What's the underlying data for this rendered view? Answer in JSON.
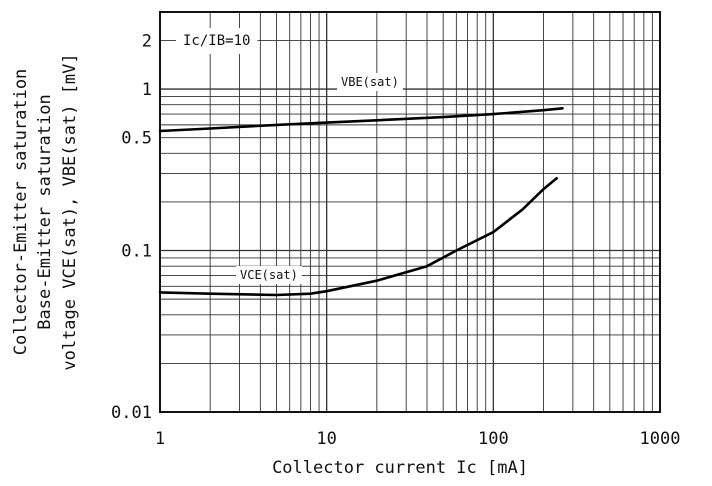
{
  "chart_data": {
    "type": "line",
    "x_scale": "log",
    "y_scale": "log",
    "xlim": [
      1,
      1000
    ],
    "ylim": [
      0.01,
      3
    ],
    "grid": true,
    "xlabel": "Collector current Ic [mA]",
    "ylabel_lines": [
      "Collector-Emitter saturation",
      "Base-Emitter saturation",
      "voltage VCE(sat), VBE(sat) [mV]"
    ],
    "x_tick_labels": [
      {
        "value": 1,
        "label": "1"
      },
      {
        "value": 10,
        "label": "10"
      },
      {
        "value": 100,
        "label": "100"
      },
      {
        "value": 1000,
        "label": "1000"
      }
    ],
    "y_tick_labels": [
      {
        "value": 0.01,
        "label": "0.01"
      },
      {
        "value": 0.1,
        "label": "0.1"
      },
      {
        "value": 0.5,
        "label": "0.5"
      },
      {
        "value": 1,
        "label": "1"
      },
      {
        "value": 2,
        "label": "2"
      }
    ],
    "annotation": "Ic/IB=10",
    "series": [
      {
        "name": "VBE(sat)",
        "x": [
          1,
          2,
          5,
          10,
          20,
          50,
          100,
          200,
          260
        ],
        "y": [
          0.55,
          0.57,
          0.6,
          0.62,
          0.64,
          0.67,
          0.7,
          0.74,
          0.76
        ]
      },
      {
        "name": "VCE(sat)",
        "x": [
          1,
          2,
          5,
          8,
          10,
          20,
          40,
          60,
          100,
          150,
          200,
          240
        ],
        "y": [
          0.055,
          0.054,
          0.053,
          0.054,
          0.056,
          0.065,
          0.08,
          0.1,
          0.13,
          0.18,
          0.24,
          0.28
        ]
      }
    ]
  }
}
